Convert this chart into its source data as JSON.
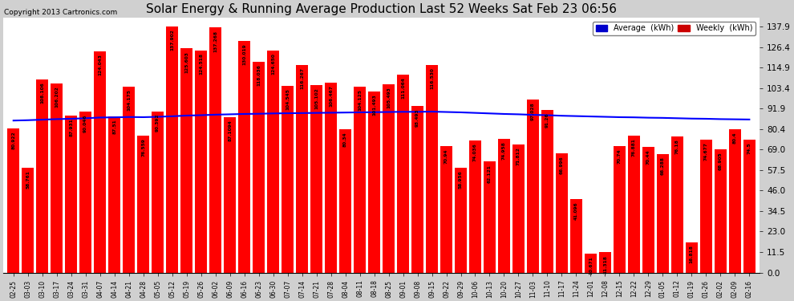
{
  "title": "Solar Energy & Running Average Production Last 52 Weeks Sat Feb 23 06:56",
  "copyright": "Copyright 2013 Cartronics.com",
  "bar_color": "#ff0000",
  "avg_line_color": "#0000ff",
  "background_color": "#d0d0d0",
  "plot_bg_color": "#ffffff",
  "grid_color": "#ffffff",
  "yticks": [
    0.0,
    11.5,
    23.0,
    34.5,
    46.0,
    57.5,
    69.0,
    80.4,
    91.9,
    103.4,
    114.9,
    126.4,
    137.9
  ],
  "legend_avg_color": "#0000cc",
  "legend_weekly_color": "#cc0000",
  "weekly_values": [
    80.922,
    58.761,
    108.106,
    106.202,
    87.931,
    90.046,
    124.043,
    87.51,
    104.175,
    76.559,
    90.392,
    137.902,
    125.603,
    124.518,
    137.268,
    87.1,
    130.019,
    118.036,
    124.65,
    104.545,
    116.267,
    105.102,
    106.467,
    80.34,
    104.125,
    101.493,
    105.493,
    111.064,
    93.493,
    116.53,
    70.94,
    58.956,
    74.036,
    62.121,
    74.958,
    71.812,
    97.028,
    91.26,
    66.996,
    41.096,
    10.671,
    11.318,
    70.74,
    76.881,
    70.44,
    66.288,
    76.18,
    16.818,
    74.677,
    68.905,
    80.4,
    74.5
  ],
  "avg_values": [
    85.2,
    85.4,
    85.7,
    86.0,
    86.2,
    86.5,
    86.9,
    87.0,
    87.2,
    87.1,
    87.3,
    87.6,
    88.0,
    88.2,
    88.5,
    88.7,
    88.9,
    89.0,
    89.2,
    89.3,
    89.4,
    89.5,
    89.6,
    89.7,
    89.8,
    89.9,
    90.0,
    90.1,
    90.1,
    90.2,
    90.0,
    89.8,
    89.5,
    89.2,
    88.9,
    88.7,
    88.4,
    88.2,
    87.9,
    87.7,
    87.5,
    87.3,
    87.1,
    87.0,
    86.8,
    86.7,
    86.5,
    86.3,
    86.2,
    86.0,
    85.9,
    85.8
  ],
  "xlabels": [
    "02-25",
    "03-03",
    "03-10",
    "03-17",
    "03-24",
    "03-31",
    "04-07",
    "04-14",
    "04-21",
    "04-28",
    "05-05",
    "05-12",
    "05-19",
    "05-26",
    "06-02",
    "06-09",
    "06-16",
    "06-23",
    "06-30",
    "07-07",
    "07-14",
    "07-21",
    "07-28",
    "08-04",
    "08-11",
    "08-18",
    "08-25",
    "09-01",
    "09-08",
    "09-15",
    "09-22",
    "09-29",
    "10-06",
    "10-13",
    "10-20",
    "10-27",
    "11-03",
    "11-10",
    "11-17",
    "11-24",
    "12-01",
    "12-08",
    "12-15",
    "12-22",
    "12-29",
    "01-05",
    "01-12",
    "01-19",
    "01-26",
    "02-02",
    "02-09",
    "02-16"
  ],
  "bar_values_display": [
    "80.922",
    "58.761",
    "108.106",
    "106.202",
    "87.931",
    "90.046",
    "124.043",
    "87.51",
    "104.175",
    "76.559",
    "90.392",
    "137.902",
    "125.603",
    "124.518",
    "137.268",
    "87.1094",
    "130.019",
    "118.036",
    "124.650",
    "104.545",
    "116.267",
    "105.102",
    "106.467",
    "80.34",
    "104.125",
    "101.493",
    "105.493",
    "111.064",
    "93.493",
    "116.530",
    "70.94",
    "58.956",
    "74.036",
    "62.121",
    "74.958",
    "71.812",
    "97.028",
    "91.26",
    "66.996",
    "41.096",
    "10.671",
    "11.318",
    "70.74",
    "76.881",
    "70.44",
    "66.288",
    "76.18",
    "16.818",
    "74.677",
    "68.905",
    "80.4",
    "74.5"
  ]
}
